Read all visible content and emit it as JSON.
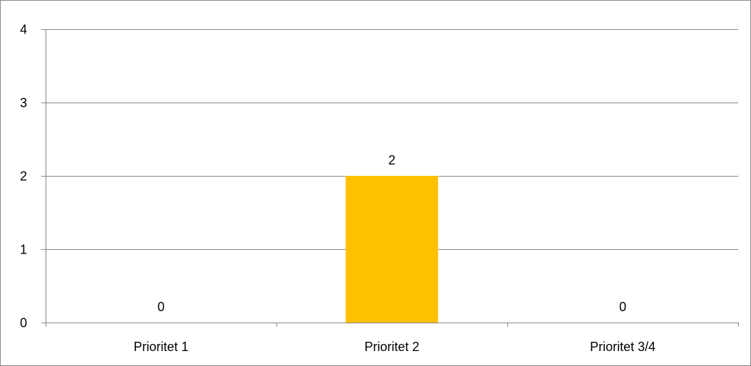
{
  "chart_data": {
    "type": "bar",
    "categories": [
      "Prioritet 1",
      "Prioritet 2",
      "Prioritet 3/4"
    ],
    "values": [
      0,
      2,
      0
    ],
    "data_labels": [
      "0",
      "2",
      "0"
    ],
    "title": "",
    "xlabel": "",
    "ylabel": "",
    "ylim": [
      0,
      4
    ],
    "yticks": [
      "0",
      "1",
      "2",
      "3",
      "4"
    ],
    "grid": true,
    "legend": "none",
    "colors": {
      "bar": "#FFC000",
      "grid": "#868686",
      "axis": "#868686",
      "border": "#868686"
    }
  }
}
